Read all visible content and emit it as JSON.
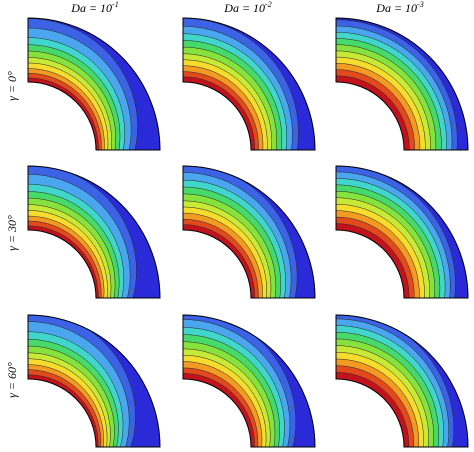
{
  "columns": [
    {
      "label": "Da = 10",
      "exponent": "-1"
    },
    {
      "label": "Da = 10",
      "exponent": "-2"
    },
    {
      "label": "Da = 10",
      "exponent": "-3"
    }
  ],
  "rows": [
    {
      "label": "γ = 0°"
    },
    {
      "label": "γ = 30°"
    },
    {
      "label": "γ = 60°"
    }
  ]
}
